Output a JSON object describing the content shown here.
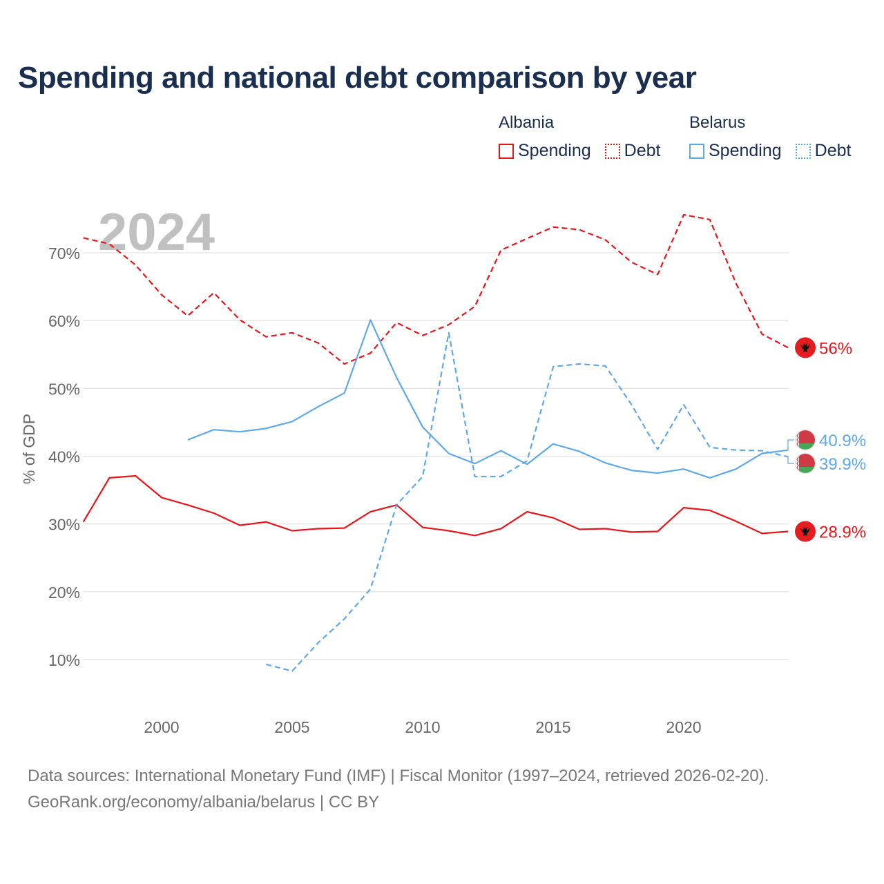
{
  "title": "Spending and national debt comparison by year",
  "legend": {
    "groups": [
      {
        "country": "Albania",
        "spending_label": "Spending",
        "debt_label": "Debt"
      },
      {
        "country": "Belarus",
        "spending_label": "Spending",
        "debt_label": "Debt"
      }
    ]
  },
  "footer": {
    "source": "Data sources: International Monetary Fund (IMF) | Fiscal Monitor (1997–2024, retrieved 2026-02-20).",
    "credit": "GeoRank.org/economy/albania/belarus | CC BY"
  },
  "colors": {
    "albania": "#e8151b",
    "belarus": "#5fa8e8",
    "title": "#1a2e4f",
    "axis_text": "#666666",
    "year_watermark": "#c0c0c0"
  },
  "chart_data": {
    "type": "line",
    "title": "Spending and national debt comparison by year",
    "year_label": "2024",
    "ylabel": "% of GDP",
    "xlabel": "",
    "xlim": [
      1997,
      2025.5
    ],
    "ylim": [
      3,
      77
    ],
    "x_ticks": [
      2000,
      2005,
      2010,
      2015,
      2020
    ],
    "y_ticks": [
      10,
      20,
      30,
      40,
      50,
      60,
      70
    ],
    "y_tick_labels": [
      "10%",
      "20%",
      "30%",
      "40%",
      "50%",
      "60%",
      "70%"
    ],
    "grid": true,
    "series": [
      {
        "name": "Albania Spending",
        "country": "Albania",
        "style": "solid",
        "color": "#e8151b",
        "x": [
          1997,
          1998,
          1999,
          2000,
          2001,
          2002,
          2003,
          2004,
          2005,
          2006,
          2007,
          2008,
          2009,
          2010,
          2011,
          2012,
          2013,
          2014,
          2015,
          2016,
          2017,
          2018,
          2019,
          2020,
          2021,
          2022,
          2023,
          2024
        ],
        "values": [
          30.3,
          36.8,
          37.1,
          33.9,
          32.8,
          31.6,
          29.8,
          30.3,
          29.0,
          29.3,
          29.4,
          31.8,
          32.8,
          29.5,
          29.0,
          28.3,
          29.3,
          31.8,
          30.9,
          29.2,
          29.3,
          28.8,
          28.9,
          32.4,
          32.0,
          30.4,
          28.6,
          28.9
        ],
        "end_label": "28.9%"
      },
      {
        "name": "Albania Debt",
        "country": "Albania",
        "style": "dashed",
        "color": "#e8151b",
        "x": [
          1997,
          1998,
          1999,
          2000,
          2001,
          2002,
          2003,
          2004,
          2005,
          2006,
          2007,
          2008,
          2009,
          2010,
          2011,
          2012,
          2013,
          2014,
          2015,
          2016,
          2017,
          2018,
          2019,
          2020,
          2021,
          2022,
          2023,
          2024
        ],
        "values": [
          72.2,
          71.3,
          68.2,
          63.8,
          60.7,
          64.1,
          60.1,
          57.6,
          58.2,
          56.7,
          53.6,
          55.2,
          59.7,
          57.8,
          59.4,
          62.1,
          70.4,
          72.1,
          73.8,
          73.4,
          71.9,
          68.6,
          66.8,
          75.6,
          74.9,
          65.5,
          58.0,
          56.0
        ],
        "end_label": "56%"
      },
      {
        "name": "Belarus Spending",
        "country": "Belarus",
        "style": "solid",
        "color": "#5fa8e8",
        "x": [
          2001,
          2002,
          2003,
          2004,
          2005,
          2006,
          2007,
          2008,
          2009,
          2010,
          2011,
          2012,
          2013,
          2014,
          2015,
          2016,
          2017,
          2018,
          2019,
          2020,
          2021,
          2022,
          2023,
          2024
        ],
        "values": [
          42.4,
          43.9,
          43.6,
          44.1,
          45.1,
          47.3,
          49.3,
          60.1,
          51.6,
          44.3,
          40.4,
          38.9,
          40.8,
          38.8,
          41.8,
          40.7,
          39.0,
          37.9,
          37.5,
          38.1,
          36.8,
          38.1,
          40.4,
          40.9
        ],
        "end_label": "40.9%"
      },
      {
        "name": "Belarus Debt",
        "country": "Belarus",
        "style": "dashed",
        "color": "#5fa8e8",
        "x": [
          2004,
          2005,
          2006,
          2007,
          2008,
          2009,
          2010,
          2011,
          2012,
          2013,
          2014,
          2015,
          2016,
          2017,
          2018,
          2019,
          2020,
          2021,
          2022,
          2023,
          2024
        ],
        "values": [
          9.3,
          8.3,
          12.5,
          16.0,
          20.4,
          32.8,
          37.0,
          58.2,
          37.0,
          37.0,
          39.3,
          53.2,
          53.6,
          53.3,
          47.6,
          41.0,
          47.6,
          41.3,
          40.9,
          40.8,
          39.9
        ],
        "end_label": "39.9%"
      }
    ]
  }
}
